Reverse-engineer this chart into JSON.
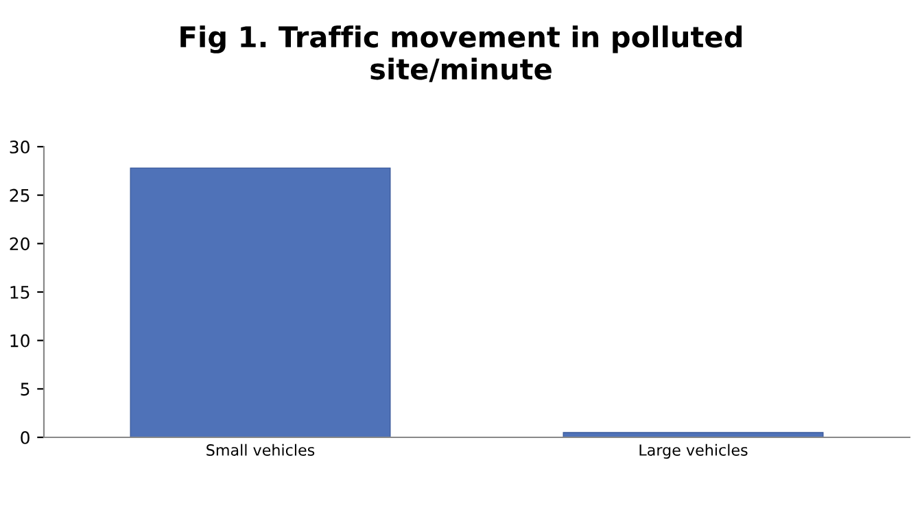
{
  "chart_data": {
    "type": "bar",
    "title": "Fig 1. Traffic movement in polluted\nsite/minute",
    "categories": [
      "Small vehicles",
      "Large vehicles"
    ],
    "values": [
      27.8,
      0.5
    ],
    "color": "#4f72b8",
    "ylim": [
      0,
      30
    ],
    "yticks": [
      0,
      5,
      10,
      15,
      20,
      25,
      30
    ],
    "grid": false,
    "legend": false
  }
}
